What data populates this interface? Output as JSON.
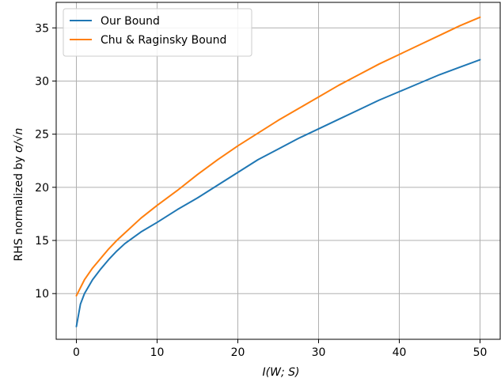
{
  "chart_data": {
    "type": "line",
    "xlabel": "I(W; S)",
    "ylabel_prefix": "RHS normalized by ",
    "ylabel_math": "σ/√n",
    "xlim": [
      -2.5,
      52.5
    ],
    "ylim": [
      5.7,
      37.4
    ],
    "xticks": [
      0,
      10,
      20,
      30,
      40,
      50
    ],
    "yticks": [
      10,
      15,
      20,
      25,
      30,
      35
    ],
    "grid": true,
    "legend_position": "top-left",
    "series": [
      {
        "name": "Our Bound",
        "color": "#1f77b4",
        "x": [
          0,
          0.5,
          1,
          2,
          3,
          4,
          5,
          6,
          8,
          10,
          12.5,
          15,
          17.5,
          20,
          22.5,
          25,
          27.5,
          30,
          32.5,
          35,
          37.5,
          40,
          42.5,
          45,
          47.5,
          50
        ],
        "y": [
          6.9,
          9.0,
          10.0,
          11.3,
          12.3,
          13.2,
          14.0,
          14.7,
          15.8,
          16.7,
          17.9,
          19.0,
          20.2,
          21.4,
          22.6,
          23.6,
          24.6,
          25.5,
          26.4,
          27.3,
          28.2,
          29.0,
          29.8,
          30.6,
          31.3,
          32.0
        ]
      },
      {
        "name": "Chu & Raginsky Bound",
        "color": "#ff7f0e",
        "x": [
          0,
          1,
          2,
          3,
          4,
          5,
          6,
          8,
          10,
          12.5,
          15,
          17.5,
          20,
          22.5,
          25,
          27.5,
          30,
          32.5,
          35,
          37.5,
          40,
          42.5,
          45,
          47.5,
          50
        ],
        "y": [
          9.8,
          11.3,
          12.4,
          13.3,
          14.2,
          15.0,
          15.7,
          17.1,
          18.3,
          19.7,
          21.2,
          22.6,
          23.9,
          25.1,
          26.3,
          27.4,
          28.5,
          29.6,
          30.6,
          31.6,
          32.5,
          33.4,
          34.3,
          35.2,
          36.0
        ]
      }
    ]
  }
}
